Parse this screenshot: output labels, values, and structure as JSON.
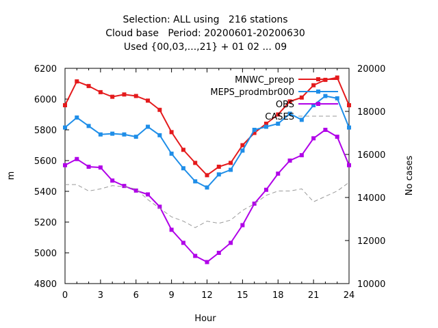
{
  "title_lines": [
    "Selection: ALL using   216 stations",
    "Cloud base   Period: 20200601-20200630",
    "Used {00,03,...,21} + 01 02 ... 09"
  ],
  "chart_data": {
    "type": "line",
    "xlabel": "Hour",
    "ylabel": "m",
    "y2label": "No cases",
    "xlim": [
      0,
      24
    ],
    "ylim": [
      4800,
      6200
    ],
    "y2lim": [
      10000,
      20000
    ],
    "xticks": [
      "0",
      "3",
      "6",
      "9",
      "12",
      "15",
      "18",
      "21",
      "24"
    ],
    "yticks": [
      "4800",
      "5000",
      "5200",
      "5400",
      "5600",
      "5800",
      "6000",
      "6200"
    ],
    "y2ticks": [
      "10000",
      "12000",
      "14000",
      "16000",
      "18000",
      "20000"
    ],
    "grid": false,
    "legend_position": "top-right",
    "x": [
      0,
      1,
      2,
      3,
      4,
      5,
      6,
      7,
      8,
      9,
      10,
      11,
      12,
      13,
      14,
      15,
      16,
      17,
      18,
      19,
      20,
      21,
      22,
      23,
      24
    ],
    "series": [
      {
        "name": "MNWC_preop",
        "color": "#e41a1c",
        "marker": "square",
        "axis": "y",
        "values": [
          5960,
          6115,
          6085,
          6045,
          6015,
          6030,
          6020,
          5990,
          5930,
          5785,
          5670,
          5585,
          5505,
          5560,
          5585,
          5700,
          5780,
          5840,
          5900,
          5985,
          6010,
          6090,
          6125,
          6140,
          5960
        ]
      },
      {
        "name": "MEPS_prodmbr000",
        "color": "#1f8ee8",
        "marker": "square",
        "axis": "y",
        "values": [
          5815,
          5880,
          5825,
          5770,
          5775,
          5770,
          5755,
          5820,
          5765,
          5645,
          5550,
          5465,
          5425,
          5510,
          5540,
          5665,
          5800,
          5820,
          5840,
          5905,
          5865,
          5960,
          6020,
          6005,
          5815
        ]
      },
      {
        "name": "OBS",
        "color": "#b000e8",
        "marker": "square",
        "axis": "y",
        "values": [
          5570,
          5610,
          5560,
          5555,
          5470,
          5435,
          5405,
          5380,
          5300,
          5150,
          5065,
          4980,
          4940,
          5000,
          5065,
          5180,
          5320,
          5410,
          5515,
          5600,
          5635,
          5745,
          5800,
          5755,
          5570
        ]
      },
      {
        "name": "CASES",
        "color": "#999999",
        "marker": "none",
        "dash": true,
        "axis": "y2",
        "values": [
          14600,
          14600,
          14300,
          14400,
          14550,
          14500,
          14400,
          13900,
          13500,
          13100,
          12900,
          12600,
          12900,
          12800,
          12950,
          13400,
          13700,
          14100,
          14300,
          14300,
          14400,
          13800,
          14050,
          14300,
          14700
        ]
      }
    ]
  }
}
